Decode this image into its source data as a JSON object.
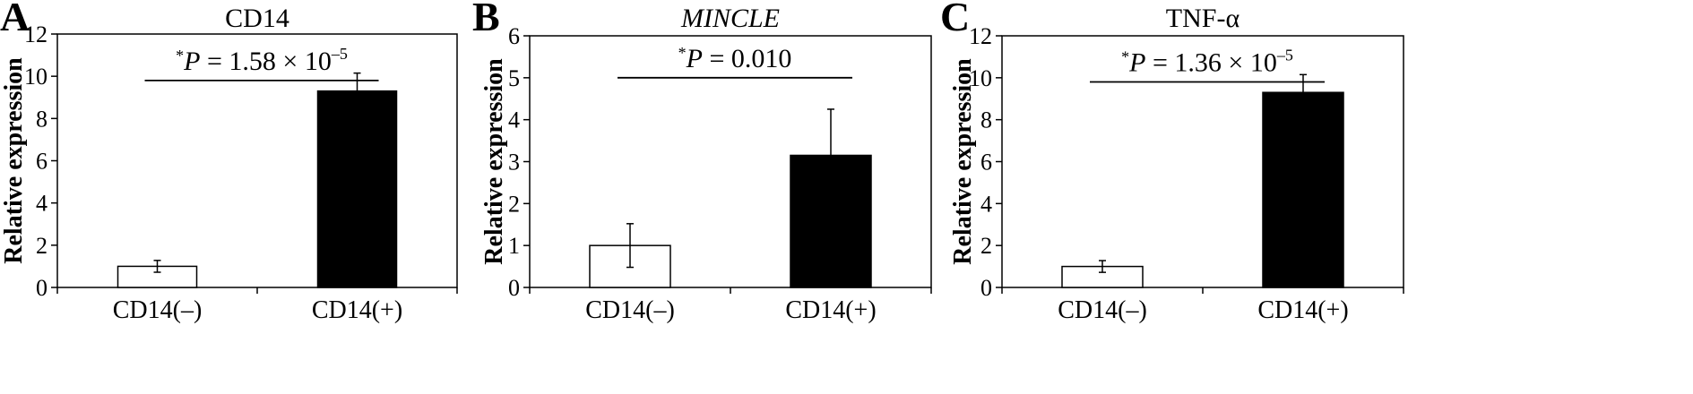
{
  "panels": [
    {
      "letter": "A",
      "chart_data": {
        "type": "bar",
        "title": "CD14",
        "title_italic": false,
        "ylabel": "Relative expression",
        "categories": [
          "CD14(–)",
          "CD14(+)"
        ],
        "values": [
          1.0,
          9.3
        ],
        "errors": [
          0.28,
          0.85
        ],
        "bar_colors": [
          "#ffffff",
          "#000000"
        ],
        "ylim": [
          0,
          12
        ],
        "yticks": [
          0,
          2,
          4,
          6,
          8,
          10,
          12
        ],
        "significance": {
          "star": "*",
          "p_label": "P",
          "p_value": " = 1.58 × 10",
          "exponent": "–5",
          "line_value": 9.8
        }
      }
    },
    {
      "letter": "B",
      "chart_data": {
        "type": "bar",
        "title": "MINCLE",
        "title_italic": true,
        "ylabel": "Relative expression",
        "categories": [
          "CD14(–)",
          "CD14(+)"
        ],
        "values": [
          1.0,
          3.15
        ],
        "errors": [
          0.52,
          1.1
        ],
        "bar_colors": [
          "#ffffff",
          "#000000"
        ],
        "ylim": [
          0,
          6
        ],
        "yticks": [
          0,
          1,
          2,
          3,
          4,
          5,
          6
        ],
        "significance": {
          "star": "*",
          "p_label": "P",
          "p_value": " = 0.010",
          "exponent": "",
          "line_value": 5.0
        }
      }
    },
    {
      "letter": "C",
      "chart_data": {
        "type": "bar",
        "title": "TNF-α",
        "title_italic": false,
        "ylabel": "Relative expression",
        "categories": [
          "CD14(–)",
          "CD14(+)"
        ],
        "values": [
          1.0,
          9.3
        ],
        "errors": [
          0.28,
          0.85
        ],
        "bar_colors": [
          "#ffffff",
          "#000000"
        ],
        "ylim": [
          0,
          12
        ],
        "yticks": [
          0,
          2,
          4,
          6,
          8,
          10,
          12
        ],
        "significance": {
          "star": "*",
          "p_label": "P",
          "p_value": " = 1.36 × 10",
          "exponent": "–5",
          "line_value": 9.8
        }
      }
    }
  ]
}
